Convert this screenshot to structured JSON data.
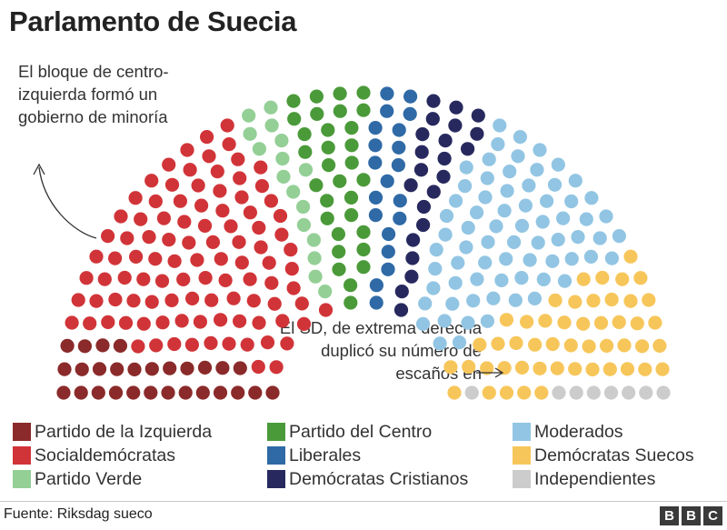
{
  "title": "Parlamento de Suecia",
  "annotations": {
    "left": "El bloque de centro-izquierda formó un gobierno de minoría",
    "right": "El SD, de extrema derecha duplicó su número de escaños en"
  },
  "source": "Fuente: Riksdag sueco",
  "logo": [
    "B",
    "B",
    "C"
  ],
  "chart_data": {
    "type": "parliament",
    "title": "Parlamento de Suecia",
    "series": [
      {
        "name": "Partido de la Izquierda",
        "values": [
          28
        ],
        "color": "#8b2a2a"
      },
      {
        "name": "Socialdemócratas",
        "values": [
          100
        ],
        "color": "#d13438"
      },
      {
        "name": "Partido Verde",
        "values": [
          16
        ],
        "color": "#94cf96"
      },
      {
        "name": "Partido del Centro",
        "values": [
          31
        ],
        "color": "#4b9a3a"
      },
      {
        "name": "Liberales",
        "values": [
          20
        ],
        "color": "#2f6aa6"
      },
      {
        "name": "Demócratas Cristianos",
        "values": [
          22
        ],
        "color": "#27295e"
      },
      {
        "name": "Moderados",
        "values": [
          70
        ],
        "color": "#92c5e3"
      },
      {
        "name": "Demócratas Suecos",
        "values": [
          49
        ],
        "color": "#f7c65a"
      },
      {
        "name": "Independientes",
        "values": [
          8
        ],
        "color": "#cccccc"
      }
    ],
    "legend": "bottom"
  }
}
